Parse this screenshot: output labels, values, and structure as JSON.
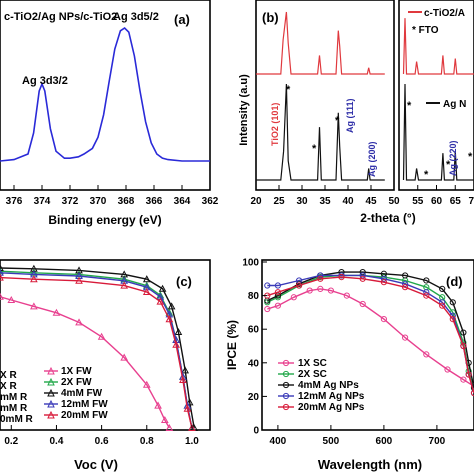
{
  "panels": {
    "a": {
      "label": "(a)",
      "legend": "c-TiO2/Ag NPs/c-TiO2",
      "peak1_label": "Ag 3d3/2",
      "peak2_label": "Ag 3d5/2",
      "xlabel": "Binding energy (eV)",
      "xticks": [
        "376",
        "374",
        "372",
        "370",
        "368",
        "366",
        "364",
        "362"
      ]
    },
    "b": {
      "label": "(b)",
      "ylabel": "Intensity (a.u)",
      "xlabel": "2-theta (°)",
      "xticks": [
        "20",
        "25",
        "30",
        "35",
        "40",
        "45",
        "50",
        "55",
        "60",
        "65",
        "70"
      ],
      "legend_red": "c-TiO2/A",
      "legend_fto": "* FTO",
      "legend_black": "Ag N",
      "ann_tio2": "TiO2 (101)",
      "ann_ag111": "Ag (111)",
      "ann_ag200": "Ag (200)",
      "ann_ag220": "Ag (220)",
      "star": "*"
    },
    "c": {
      "label": "(c)",
      "xlabel": "Voc (V)",
      "xticks": [
        "0.2",
        "0.4",
        "0.6",
        "0.8",
        "1.0"
      ],
      "legend_left": [
        "X R",
        "X R",
        "mM R",
        "mM R",
        "0mM R"
      ],
      "legend_right": [
        "1X FW",
        "2X FW",
        "4mM FW",
        "12mM FW",
        "20mM FW"
      ]
    },
    "d": {
      "label": "(d)",
      "ylabel": "IPCE (%)",
      "xlabel": "Wavelength (nm)",
      "xticks": [
        "400",
        "500",
        "600",
        "700"
      ],
      "yticks": [
        "0",
        "20",
        "40",
        "60",
        "80",
        "100"
      ],
      "legend": [
        "1X SC",
        "2X SC",
        "4mM Ag NPs",
        "12mM Ag NPs",
        "20mM Ag NPs"
      ]
    }
  },
  "chart_data": [
    {
      "type": "line",
      "panel": "a",
      "xlabel": "Binding energy (eV)",
      "xlim": [
        377,
        362
      ],
      "series": [
        {
          "name": "c-TiO2/Ag NPs/c-TiO2",
          "color": "#2a2ad8",
          "x": [
            377,
            376,
            375,
            374.6,
            374.2,
            374.0,
            373.8,
            373.4,
            373,
            372.4,
            372,
            371.4,
            371,
            370.4,
            370,
            369.6,
            369.2,
            368.8,
            368.4,
            368.1,
            367.8,
            367.4,
            367.0,
            366.6,
            366.2,
            365.8,
            365.4,
            365,
            364,
            363,
            362
          ],
          "y": [
            0.05,
            0.06,
            0.1,
            0.25,
            0.55,
            0.6,
            0.55,
            0.28,
            0.12,
            0.07,
            0.07,
            0.08,
            0.1,
            0.14,
            0.22,
            0.38,
            0.62,
            0.85,
            0.98,
            1.0,
            0.97,
            0.8,
            0.55,
            0.33,
            0.18,
            0.1,
            0.07,
            0.06,
            0.05,
            0.05,
            0.05
          ]
        }
      ]
    },
    {
      "type": "line",
      "panel": "b",
      "xlabel": "2-theta (°)",
      "ylabel": "Intensity (a.u)",
      "series": [
        {
          "name": "c-TiO2/A",
          "color": "#e0393e",
          "x": [
            20,
            25.4,
            25.9,
            26.6,
            27.0,
            27.6,
            30,
            33.4,
            33.8,
            34.2,
            36,
            37.4,
            37.9,
            38.2,
            38.6,
            42,
            44.2,
            44.5,
            44.8,
            47,
            48,
            51.2,
            51.6,
            52,
            54.3,
            54.7,
            55.2,
            58,
            61.3,
            61.7,
            62.1,
            64.6,
            65,
            65.4,
            70
          ],
          "y": [
            0,
            0,
            0.55,
            1.0,
            0.5,
            0,
            0,
            0,
            0.3,
            0,
            0,
            0,
            0.7,
            0.45,
            0,
            0,
            0,
            0.1,
            0,
            0,
            0,
            0,
            0.9,
            0,
            0,
            0.2,
            0,
            0,
            0,
            0.3,
            0,
            0,
            0.25,
            0,
            0
          ]
        },
        {
          "name": "Ag N",
          "color": "#111111",
          "x": [
            20,
            25.4,
            26.0,
            26.6,
            27.0,
            27.6,
            30,
            33.4,
            33.8,
            34.2,
            36,
            37.4,
            37.9,
            38.2,
            38.6,
            42,
            44.2,
            44.5,
            44.8,
            47,
            48,
            51.2,
            51.6,
            52,
            54.3,
            54.7,
            55.2,
            58,
            61.3,
            61.7,
            62.1,
            64.6,
            65,
            65.4,
            70
          ],
          "y": [
            0,
            0,
            0.3,
            1.0,
            0.2,
            0,
            0,
            0,
            0.55,
            0,
            0,
            0,
            0.7,
            0.35,
            0,
            0,
            0,
            0.12,
            0,
            0,
            0,
            0,
            1.0,
            0,
            0,
            0.12,
            0,
            0,
            0,
            0.28,
            0,
            0,
            0.3,
            0,
            0
          ]
        }
      ]
    },
    {
      "type": "line",
      "panel": "c",
      "xlabel": "Voc (V)",
      "xlim": [
        0.15,
        1.08
      ],
      "series": [
        {
          "name": "1X FW",
          "color": "#e8408f",
          "x": [
            0.15,
            0.2,
            0.3,
            0.4,
            0.5,
            0.6,
            0.7,
            0.8,
            0.85,
            0.88,
            0.9
          ],
          "y": [
            0.82,
            0.8,
            0.76,
            0.72,
            0.66,
            0.57,
            0.44,
            0.27,
            0.14,
            0.05,
            0
          ]
        },
        {
          "name": "2X FW",
          "color": "#22a84a",
          "x": [
            0.15,
            0.3,
            0.5,
            0.7,
            0.8,
            0.86,
            0.9,
            0.93,
            0.96,
            0.98,
            1.0
          ],
          "y": [
            0.98,
            0.97,
            0.96,
            0.93,
            0.89,
            0.83,
            0.72,
            0.55,
            0.32,
            0.14,
            0
          ]
        },
        {
          "name": "4mM FW",
          "color": "#111111",
          "x": [
            0.15,
            0.3,
            0.5,
            0.7,
            0.8,
            0.87,
            0.91,
            0.94,
            0.97,
            0.99,
            1.01
          ],
          "y": [
            1.0,
            0.995,
            0.985,
            0.96,
            0.93,
            0.87,
            0.76,
            0.6,
            0.36,
            0.16,
            0
          ]
        },
        {
          "name": "12mM FW",
          "color": "#3a3ab8",
          "x": [
            0.15,
            0.3,
            0.5,
            0.7,
            0.8,
            0.86,
            0.9,
            0.93,
            0.96,
            0.98,
            1.0
          ],
          "y": [
            0.97,
            0.96,
            0.95,
            0.92,
            0.88,
            0.82,
            0.71,
            0.55,
            0.32,
            0.14,
            0
          ]
        },
        {
          "name": "20mM FW",
          "color": "#d81b3a",
          "x": [
            0.15,
            0.3,
            0.5,
            0.7,
            0.8,
            0.86,
            0.9,
            0.93,
            0.96,
            0.98,
            1.0
          ],
          "y": [
            0.94,
            0.93,
            0.92,
            0.89,
            0.85,
            0.79,
            0.68,
            0.52,
            0.3,
            0.12,
            0
          ]
        }
      ]
    },
    {
      "type": "line",
      "panel": "d",
      "xlabel": "Wavelength (nm)",
      "ylabel": "IPCE (%)",
      "xlim": [
        370,
        770
      ],
      "ylim": [
        0,
        100
      ],
      "series": [
        {
          "name": "1X SC",
          "color": "#e8408f",
          "x": [
            380,
            400,
            430,
            460,
            480,
            500,
            530,
            560,
            600,
            640,
            680,
            720,
            750,
            770
          ],
          "y": [
            72,
            74,
            79,
            83,
            84,
            83,
            80,
            75,
            66,
            55,
            45,
            36,
            30,
            26
          ]
        },
        {
          "name": "2X SC",
          "color": "#22a84a",
          "x": [
            380,
            400,
            440,
            480,
            520,
            560,
            600,
            640,
            680,
            710,
            730,
            750,
            760,
            770
          ],
          "y": [
            76,
            79,
            86,
            91,
            92,
            92,
            91,
            89,
            85,
            79,
            70,
            52,
            35,
            22
          ]
        },
        {
          "name": "4mM Ag NPs",
          "color": "#111111",
          "x": [
            380,
            400,
            440,
            480,
            520,
            560,
            600,
            640,
            680,
            710,
            730,
            750,
            760,
            770
          ],
          "y": [
            77,
            80,
            87,
            92,
            94,
            94,
            93,
            92,
            89,
            84,
            76,
            58,
            40,
            25
          ]
        },
        {
          "name": "12mM Ag NPs",
          "color": "#3a3ab8",
          "x": [
            380,
            400,
            440,
            480,
            520,
            560,
            600,
            640,
            680,
            710,
            730,
            750,
            760,
            770
          ],
          "y": [
            86,
            86,
            89,
            92,
            92,
            92,
            90,
            87,
            82,
            76,
            68,
            50,
            33,
            22
          ]
        },
        {
          "name": "20mM Ag NPs",
          "color": "#d81b3a",
          "x": [
            380,
            400,
            440,
            480,
            520,
            560,
            600,
            640,
            680,
            710,
            730,
            750,
            760,
            770
          ],
          "y": [
            80,
            82,
            86,
            90,
            91,
            90,
            88,
            85,
            80,
            74,
            66,
            50,
            33,
            22
          ]
        }
      ]
    }
  ]
}
